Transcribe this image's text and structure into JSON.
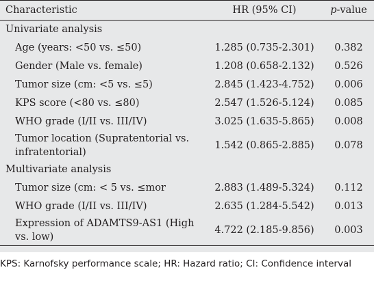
{
  "table": {
    "headers": {
      "characteristic": "Characteristic",
      "hr": "HR (95% CI)",
      "p_italic": "p",
      "p_rest": "-value"
    },
    "univariate": {
      "label": "Univariate analysis",
      "rows": [
        {
          "variable": "Age (years: <50 vs. ≤50)",
          "hr": "1.285 (0.735-2.301)",
          "p": "0.382"
        },
        {
          "variable": "Gender (Male vs. female)",
          "hr": "1.208 (0.658-2.132)",
          "p": "0.526"
        },
        {
          "variable": "Tumor size (cm: <5 vs. ≤5)",
          "hr": "2.845 (1.423-4.752)",
          "p": "0.006"
        },
        {
          "variable": "KPS score (<80 vs. ≤80)",
          "hr": "2.547 (1.526-5.124)",
          "p": "0.085"
        },
        {
          "variable": "WHO grade (I/II vs. III/IV)",
          "hr": "3.025 (1.635-5.865)",
          "p": "0.008"
        },
        {
          "variable": "Tumor location (Supratentorial vs. infratentorial)",
          "hr": "1.542 (0.865-2.885)",
          "p": "0.078"
        }
      ]
    },
    "multivariate": {
      "label": "Multivariate analysis",
      "rows": [
        {
          "variable": "Tumor size (cm: < 5 vs. ≤mor",
          "hr": "2.883 (1.489-5.324)",
          "p": "0.112"
        },
        {
          "variable": "WHO grade (I/II vs. III/IV)",
          "hr": "2.635 (1.284-5.542)",
          "p": "0.013"
        },
        {
          "variable": "Expression of ADAMTS9-AS1 (High vs. low)",
          "hr": "4.722 (2.185-9.856)",
          "p": "0.003"
        }
      ]
    }
  },
  "footnote": "KPS: Karnofsky performance scale; HR: Hazard ratio; CI: Confidence interval"
}
